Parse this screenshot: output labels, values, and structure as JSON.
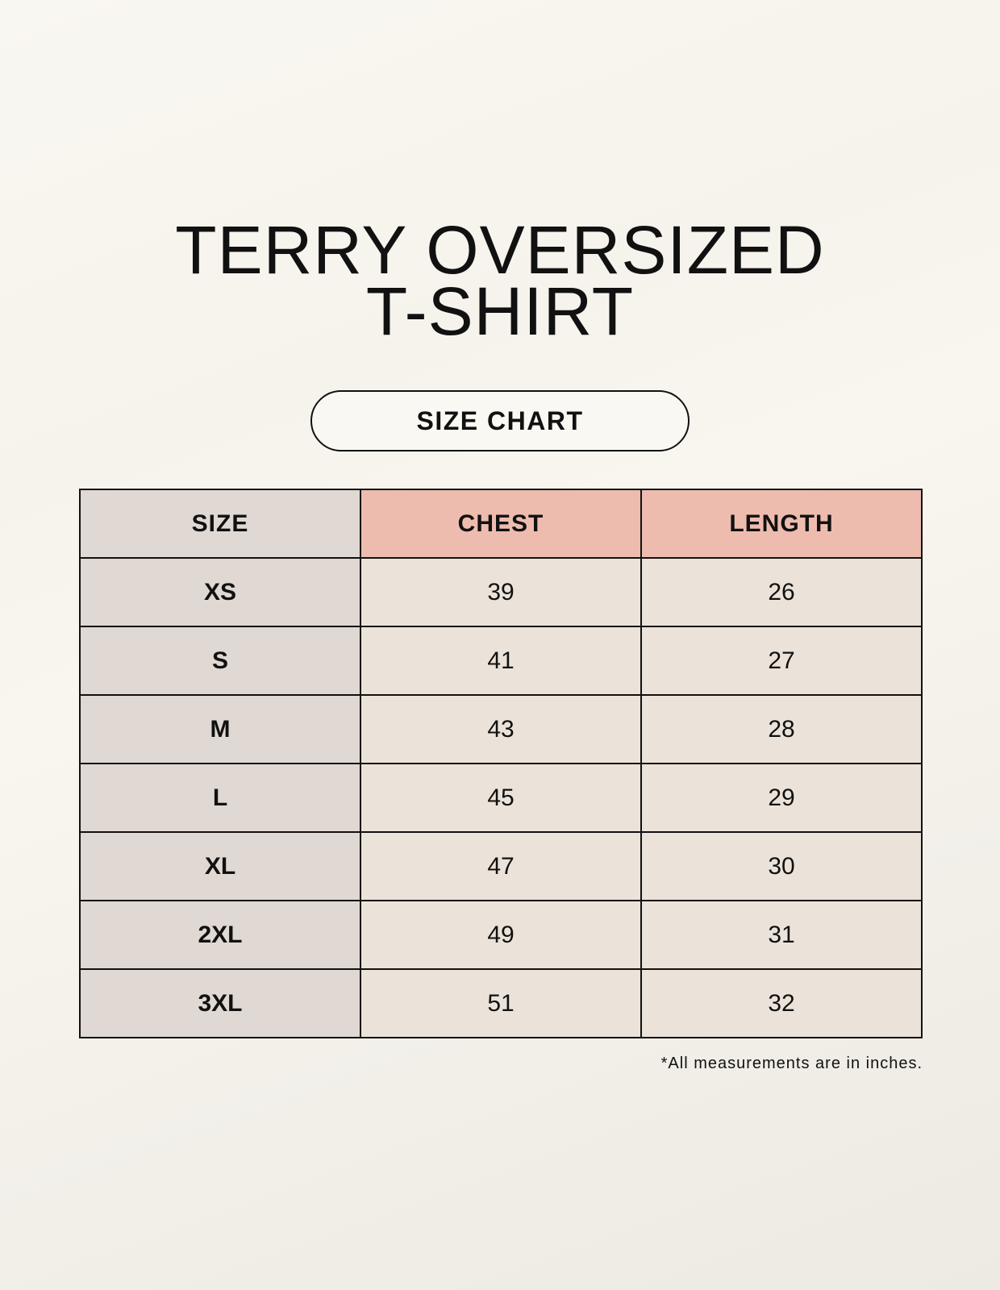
{
  "title": {
    "line1": "TERRY OVERSIZED",
    "line2": "T-SHIRT"
  },
  "badge": "SIZE CHART",
  "table": {
    "headers": [
      "SIZE",
      "CHEST",
      "LENGTH"
    ],
    "rows": [
      [
        "XS",
        "39",
        "26"
      ],
      [
        "S",
        "41",
        "27"
      ],
      [
        "M",
        "43",
        "28"
      ],
      [
        "L",
        "45",
        "29"
      ],
      [
        "XL",
        "47",
        "30"
      ],
      [
        "2XL",
        "49",
        "31"
      ],
      [
        "3XL",
        "51",
        "32"
      ]
    ]
  },
  "note": "*All measurements are in inches.",
  "colors": {
    "header_accent": "#eebcae",
    "size_column": "#e0d8d2",
    "cell": "#ebe3d9"
  }
}
